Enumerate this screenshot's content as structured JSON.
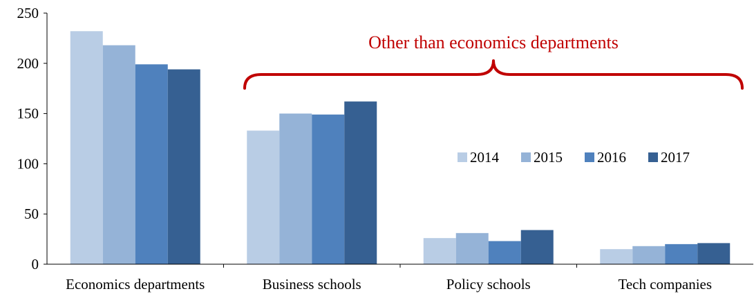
{
  "chart_data": {
    "type": "bar",
    "title": "",
    "xlabel": "",
    "ylabel": "",
    "ylim": [
      0,
      250
    ],
    "yticks": [
      0,
      50,
      100,
      150,
      200,
      250
    ],
    "grid": false,
    "legend_placement": "center-right",
    "categories": [
      "Economics departments",
      "Business schools",
      "Policy schools",
      "Tech companies"
    ],
    "series": [
      {
        "name": "2014",
        "color": "#b9cde5",
        "values": [
          232,
          133,
          26,
          15
        ]
      },
      {
        "name": "2015",
        "color": "#95b3d7",
        "values": [
          218,
          150,
          31,
          18
        ]
      },
      {
        "name": "2016",
        "color": "#4f81bd",
        "values": [
          199,
          149,
          23,
          20
        ]
      },
      {
        "name": "2017",
        "color": "#366092",
        "values": [
          194,
          162,
          34,
          21
        ]
      }
    ],
    "annotation": {
      "text": "Other than economics departments",
      "color": "#c00000",
      "spans_categories": [
        "Business schools",
        "Policy schools",
        "Tech companies"
      ]
    }
  }
}
